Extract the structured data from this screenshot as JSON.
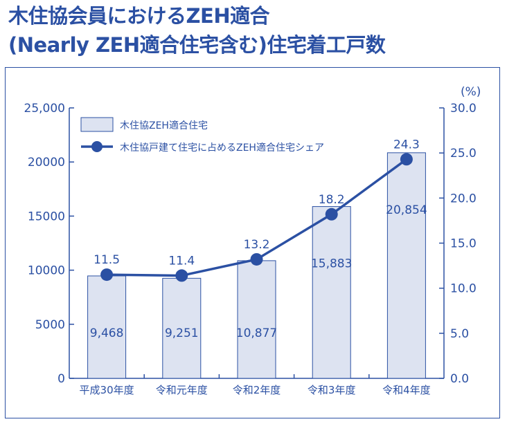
{
  "title": {
    "line1": "木住協会員におけるZEH適合",
    "line2": "(Nearly ZEH適合住宅含む)住宅着工戸数"
  },
  "colors": {
    "accent": "#2b50a3",
    "bar_fill": "#dde3f1",
    "bar_stroke": "#2b50a3",
    "line": "#2b50a3"
  },
  "chart_data": {
    "type": "bar",
    "categories": [
      "平成30年度",
      "令和元年度",
      "令和2年度",
      "令和3年度",
      "令和4年度"
    ],
    "series": [
      {
        "name": "木住協ZEH適合住宅",
        "type": "bar",
        "axis": "left",
        "values": [
          9468,
          9251,
          10877,
          15883,
          20854
        ],
        "labels": [
          "9,468",
          "9,251",
          "10,877",
          "15,883",
          "20,854"
        ]
      },
      {
        "name": "木住協戸建て住宅に占めるZEH適合住宅シェア",
        "type": "line",
        "axis": "right",
        "values": [
          11.5,
          11.4,
          13.2,
          18.2,
          24.3
        ],
        "labels": [
          "11.5",
          "11.4",
          "13.2",
          "18.2",
          "24.3"
        ]
      }
    ],
    "y_left": {
      "min": 0,
      "max": 25000,
      "ticks": [
        0,
        5000,
        10000,
        15000,
        20000,
        25000
      ],
      "tick_labels": [
        "0",
        "5000",
        "10000",
        "15000",
        "20000",
        "25,000"
      ]
    },
    "y_right": {
      "min": 0,
      "max": 30,
      "unit": "(%)",
      "ticks": [
        0,
        5,
        10,
        15,
        20,
        25,
        30
      ],
      "tick_labels": [
        "0.0",
        "5.0",
        "10.0",
        "15.0",
        "20.0",
        "25.0",
        "30.0"
      ]
    },
    "grid": false,
    "legend_position": "top-left"
  }
}
